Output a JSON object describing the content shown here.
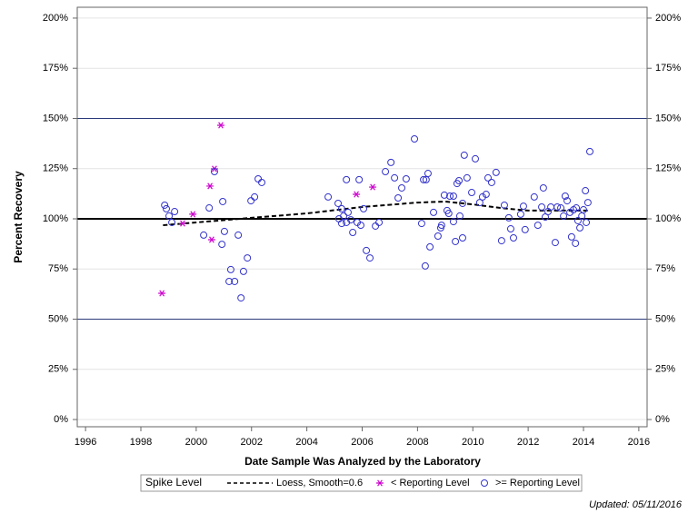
{
  "chart_data": {
    "type": "scatter",
    "x_label": "Date Sample Was Analyzed by the Laboratory",
    "y_label": "Percent Recovery",
    "xlim": [
      1995.7,
      2016.3
    ],
    "xticks": [
      1996,
      1998,
      2000,
      2002,
      2004,
      2006,
      2008,
      2010,
      2012,
      2014,
      2016
    ],
    "ylim": [
      -3.6,
      205.4
    ],
    "yticks": [
      {
        "value": 0,
        "label": "0%"
      },
      {
        "value": 25,
        "label": "25%"
      },
      {
        "value": 50,
        "label": "50%"
      },
      {
        "value": 75,
        "label": "75%"
      },
      {
        "value": 100,
        "label": "100%"
      },
      {
        "value": 125,
        "label": "125%"
      },
      {
        "value": 150,
        "label": "150%"
      },
      {
        "value": 175,
        "label": "175%"
      },
      {
        "value": 200,
        "label": "200%"
      }
    ],
    "y2lim": [
      -3.6,
      205.4
    ],
    "y2ticks": [
      {
        "value": 0,
        "label": "0%"
      },
      {
        "value": 25,
        "label": "25%"
      },
      {
        "value": 50,
        "label": "50%"
      },
      {
        "value": 75,
        "label": "75%"
      },
      {
        "value": 100,
        "label": "100%"
      },
      {
        "value": 125,
        "label": "125%"
      },
      {
        "value": 150,
        "label": "150%"
      },
      {
        "value": 175,
        "label": "175%"
      },
      {
        "value": 200,
        "label": "200%"
      }
    ],
    "grid": true,
    "reference_lines": [
      50,
      100,
      150
    ],
    "legend_title": "Spike Level",
    "legend_position": "bottom",
    "footnote": "Updated: 05/11/2016",
    "series": [
      {
        "name": "Loess, Smooth=0.6",
        "color": "#000000",
        "marker": "none",
        "line_style": "dashed",
        "x": [
          1998.8,
          2000,
          2002,
          2004,
          2006,
          2008,
          2009,
          2010,
          2011,
          2012,
          2013,
          2014.2
        ],
        "values": [
          96.8,
          98.2,
          100.5,
          102.7,
          105.9,
          108.1,
          108.6,
          107.2,
          105.4,
          104.1,
          104.1,
          104.1
        ]
      },
      {
        "name": "< Reporting Level",
        "color": "#cc00cc",
        "marker": "asterisk",
        "line_style": "none",
        "x": [
          1998.76,
          1999.51,
          1999.88,
          2000.5,
          2000.66,
          2000.56,
          2000.89,
          2005.79,
          2006.38
        ],
        "values": [
          62.9,
          97.7,
          102.3,
          116.3,
          124.9,
          89.6,
          146.6,
          112.2,
          115.8
        ]
      },
      {
        "name": ">= Reporting Level",
        "color": "#3333cc",
        "marker": "circle",
        "line_style": "none",
        "x": [
          1998.86,
          1998.92,
          1999.02,
          1999.12,
          1999.22,
          2000.27,
          2000.47,
          2000.66,
          2000.93,
          2000.96,
          2001.02,
          2001.19,
          2001.25,
          2001.39,
          2001.52,
          2001.62,
          2001.71,
          2001.85,
          2001.98,
          2002.11,
          2002.24,
          2002.37,
          2004.77,
          2005.13,
          2005.16,
          2005.26,
          2005.26,
          2005.33,
          2005.43,
          2005.43,
          2005.49,
          2005.59,
          2005.66,
          2005.82,
          2005.89,
          2005.95,
          2006.05,
          2006.15,
          2006.28,
          2006.48,
          2006.61,
          2006.84,
          2007.04,
          2007.17,
          2007.3,
          2007.43,
          2007.59,
          2007.89,
          2008.15,
          2008.22,
          2008.28,
          2008.31,
          2008.38,
          2008.45,
          2008.58,
          2008.74,
          2008.84,
          2008.87,
          2008.97,
          2009.07,
          2009.13,
          2009.17,
          2009.3,
          2009.3,
          2009.37,
          2009.43,
          2009.5,
          2009.53,
          2009.63,
          2009.63,
          2009.69,
          2009.79,
          2009.96,
          2010.09,
          2010.25,
          2010.35,
          2010.48,
          2010.55,
          2010.68,
          2010.84,
          2011.04,
          2011.14,
          2011.3,
          2011.37,
          2011.47,
          2011.73,
          2011.83,
          2011.89,
          2012.22,
          2012.35,
          2012.49,
          2012.55,
          2012.62,
          2012.72,
          2012.82,
          2012.98,
          2013.05,
          2013.18,
          2013.28,
          2013.34,
          2013.41,
          2013.51,
          2013.57,
          2013.64,
          2013.71,
          2013.74,
          2013.8,
          2013.87,
          2013.94,
          2014,
          2014.07,
          2014.1,
          2014.16,
          2014.23
        ],
        "values": [
          106.8,
          105,
          101.4,
          98.2,
          103.6,
          91.9,
          105.4,
          123.5,
          87.3,
          108.6,
          93.7,
          68.8,
          74.7,
          68.8,
          91.9,
          60.6,
          73.8,
          80.5,
          109,
          110.9,
          119.9,
          118.1,
          110.9,
          107.7,
          100,
          105,
          97.7,
          101.4,
          119.5,
          98.2,
          103.2,
          99.5,
          93.2,
          98.2,
          119.5,
          96.8,
          105,
          84.2,
          80.5,
          96.4,
          98.2,
          123.5,
          128.1,
          120.4,
          110.4,
          115.4,
          119.9,
          139.8,
          97.7,
          119.5,
          76.5,
          119.5,
          122.6,
          86,
          103.2,
          91.4,
          95.5,
          96.8,
          111.8,
          104.1,
          102.7,
          111.3,
          111.3,
          98.6,
          88.7,
          117.6,
          119,
          101.4,
          90.5,
          107.7,
          131.7,
          120.4,
          113.1,
          129.9,
          108.1,
          110.9,
          112.2,
          120.4,
          118.1,
          123.1,
          89.1,
          106.8,
          100.5,
          95,
          90.5,
          102.3,
          106.3,
          94.6,
          110.9,
          96.8,
          105.9,
          115.4,
          100.9,
          103.6,
          105.9,
          88.2,
          105.9,
          105.4,
          101.4,
          111.3,
          109,
          103.2,
          91,
          104.5,
          87.8,
          105.4,
          99.1,
          95.5,
          101.4,
          104.5,
          114,
          98.2,
          108.1,
          133.5
        ]
      }
    ]
  }
}
